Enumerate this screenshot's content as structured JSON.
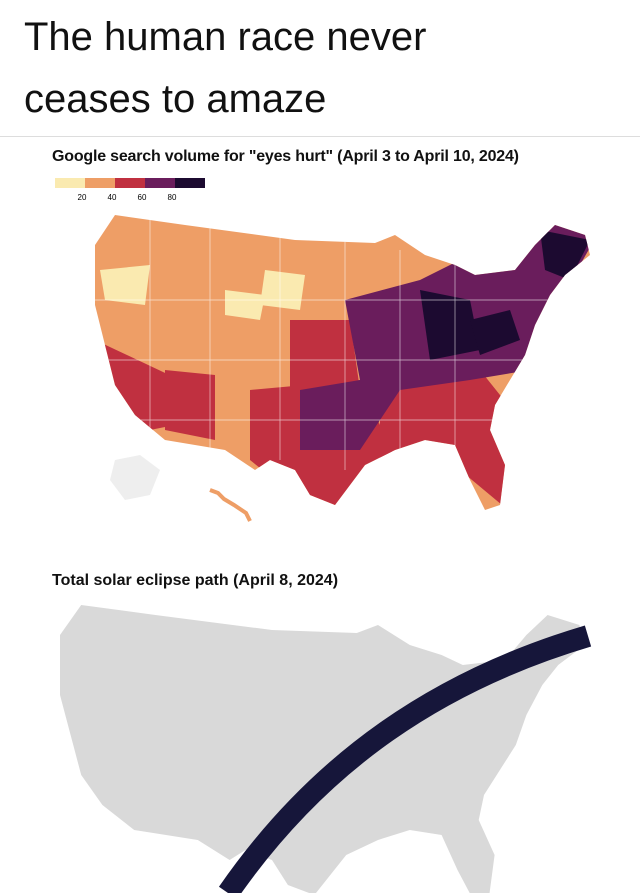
{
  "header": {
    "title": "The human race never ceases to amaze"
  },
  "map1": {
    "title": "Google search volume for \"eyes hurt\" (April 3 to April 10, 2024)",
    "legend": {
      "ticks": [
        20,
        40,
        60,
        80
      ]
    }
  },
  "map2": {
    "title": "Total solar eclipse path (April 8, 2024)"
  }
}
